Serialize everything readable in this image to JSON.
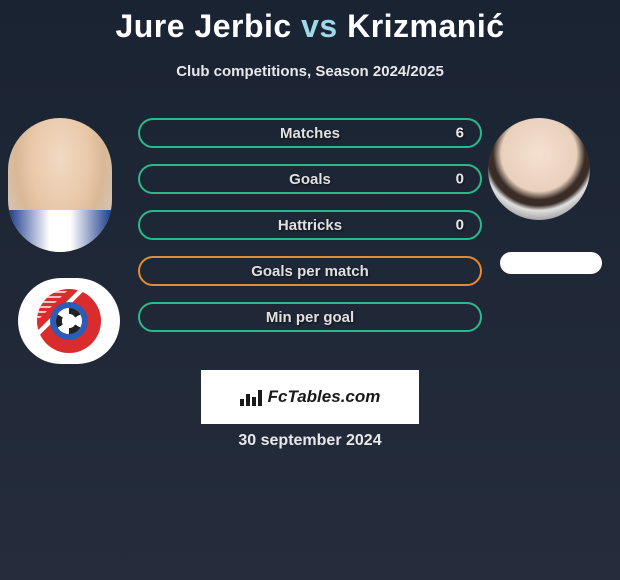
{
  "title": {
    "player1": "Jure Jerbic",
    "vs": "vs",
    "player2": "Krizmanić"
  },
  "subtitle": "Club competitions, Season 2024/2025",
  "stats": {
    "rows": [
      {
        "label": "Matches",
        "value": "6",
        "border_color": "#2db88a"
      },
      {
        "label": "Goals",
        "value": "0",
        "border_color": "#2db88a"
      },
      {
        "label": "Hattricks",
        "value": "0",
        "border_color": "#2db88a"
      },
      {
        "label": "Goals per match",
        "value": "",
        "border_color": "#e88a2d"
      },
      {
        "label": "Min per goal",
        "value": "",
        "border_color": "#2db88a"
      }
    ]
  },
  "footer": {
    "logo_text": "FcTables.com",
    "date": "30 september 2024"
  },
  "colors": {
    "background_top": "#1a2332",
    "background_bottom": "#252d3d",
    "title_vs": "#9fd8e8",
    "text_light": "#e8e8e8",
    "logo_bg": "#ffffff"
  }
}
